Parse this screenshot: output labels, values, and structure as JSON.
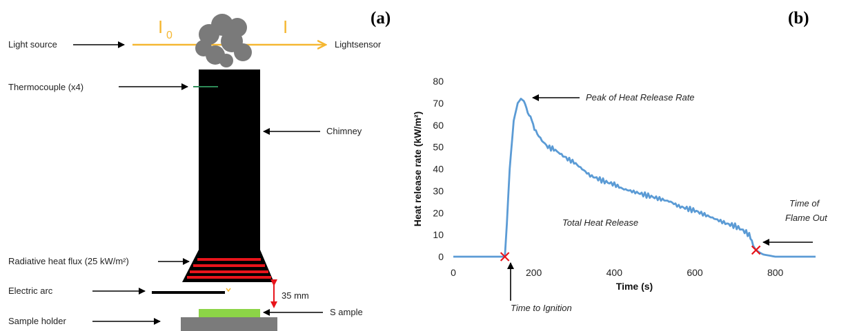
{
  "panel_a": {
    "tag": "(a)",
    "intensity_in": "I",
    "intensity_in_sub": "0",
    "intensity_out": "I",
    "labels": {
      "light_source": "Light source",
      "light_sensor": "Lightsensor",
      "thermocouple": "Thermocouple (x4)",
      "chimney": "Chimney",
      "radiative": "Radiative heat flux (25 kW/m²)",
      "electric_arc": "Electric arc",
      "distance": "35 mm",
      "sample": "S ample",
      "sample_holder": "Sample holder"
    },
    "colors": {
      "light_beam": "#f5b731",
      "smoke": "#7a7a7a",
      "heater": "#e8141b",
      "sample": "#8cd447",
      "holder": "#7b7b7b",
      "distance_arrow": "#e8141b",
      "thermocouple": "#2e8b57"
    }
  },
  "panel_b": {
    "tag": "(b)",
    "annotations": {
      "peak": "Peak of Heat Release  Rate",
      "total": "Total Heat Release",
      "flameout_line1": "Time of",
      "flameout_line2": "Flame Out",
      "ignition": "Time to Ignition"
    }
  },
  "chart_data": {
    "type": "line",
    "title": "",
    "xlabel": "Time (s)",
    "ylabel": "Heat release rate (kW/m²)",
    "xlim": [
      0,
      900
    ],
    "ylim": [
      0,
      80
    ],
    "xticks": [
      0,
      200,
      400,
      600,
      800
    ],
    "yticks": [
      0,
      10,
      20,
      30,
      40,
      50,
      60,
      70,
      80
    ],
    "grid": false,
    "line_color": "#5b9bd5",
    "marker_color": "#e8141b",
    "series": [
      {
        "x": [
          0,
          50,
          100,
          128,
          133,
          140,
          150,
          160,
          168,
          175,
          185,
          195,
          205,
          220,
          235,
          250,
          265,
          280,
          300,
          320,
          340,
          360,
          380,
          400,
          420,
          440,
          460,
          480,
          500,
          520,
          540,
          560,
          580,
          600,
          620,
          640,
          660,
          680,
          700,
          720,
          735,
          745,
          752,
          760,
          770,
          785,
          800,
          820,
          900
        ],
        "y": [
          0,
          0,
          0,
          0,
          15,
          40,
          62,
          70,
          72,
          71,
          66,
          62,
          57,
          53,
          50,
          49,
          47,
          45,
          43,
          40,
          37,
          35.5,
          34,
          33,
          31,
          30,
          29,
          28,
          27,
          26,
          25,
          23,
          22,
          21,
          19.5,
          18,
          16.5,
          15,
          14,
          12,
          10,
          5,
          3,
          2,
          1,
          0.5,
          0,
          0,
          0
        ]
      }
    ],
    "markers": [
      {
        "x": 128,
        "y": 0,
        "label": "Time to Ignition"
      },
      {
        "x": 752,
        "y": 3,
        "label": "Time of Flame Out"
      }
    ],
    "peak": {
      "x": 168,
      "y": 72
    }
  }
}
